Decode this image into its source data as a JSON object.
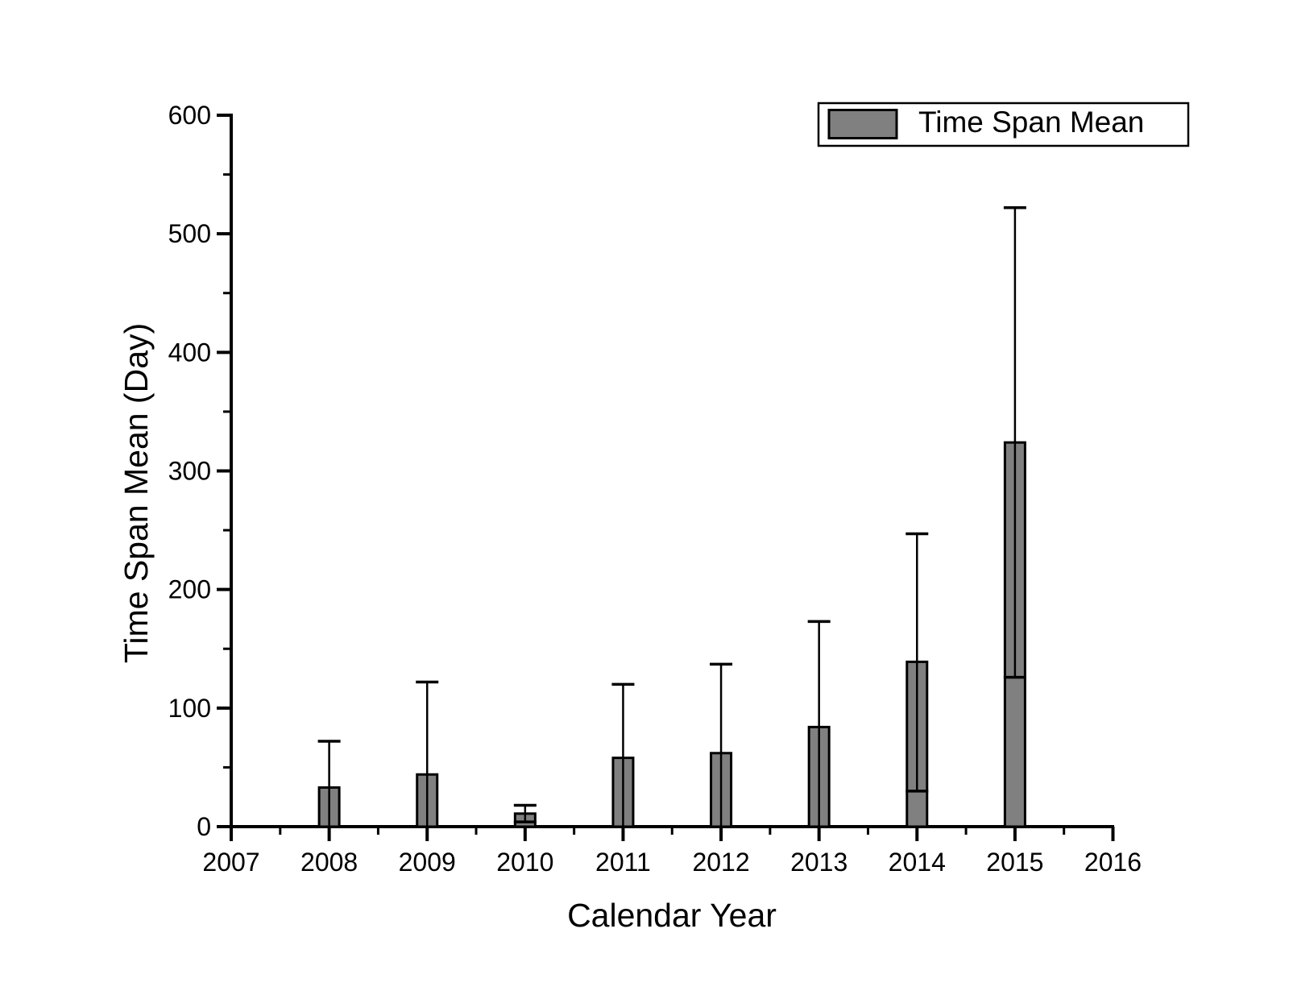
{
  "chart_data": {
    "type": "bar",
    "title": "",
    "xlabel": "Calendar Year",
    "ylabel": "Time Span Mean (Day)",
    "categories": [
      2008,
      2009,
      2010,
      2011,
      2012,
      2013,
      2014,
      2015
    ],
    "values": [
      33,
      44,
      11,
      58,
      62,
      84,
      139,
      324
    ],
    "error_upper_cap": [
      72,
      122,
      18,
      120,
      137,
      173,
      247,
      522
    ],
    "error_lower_cap": [
      null,
      null,
      4,
      null,
      null,
      null,
      30,
      126
    ],
    "xlim": [
      2007,
      2016
    ],
    "ylim": [
      0,
      600
    ],
    "x_major_ticks": [
      2007,
      2008,
      2009,
      2010,
      2011,
      2012,
      2013,
      2014,
      2015,
      2016
    ],
    "y_major_ticks": [
      0,
      100,
      200,
      300,
      400,
      500,
      600
    ],
    "x_minor_step": 0.5,
    "y_minor_step": 50,
    "grid": false,
    "legend": {
      "label": "Time Span Mean",
      "position": "top-right"
    },
    "colors": {
      "bar_fill": "#808080",
      "bar_border": "#000000",
      "error_bar": "#000000",
      "axis": "#000000",
      "text": "#000000",
      "background": "#ffffff",
      "legend_border": "#000000",
      "legend_fill": "#ffffff"
    }
  }
}
